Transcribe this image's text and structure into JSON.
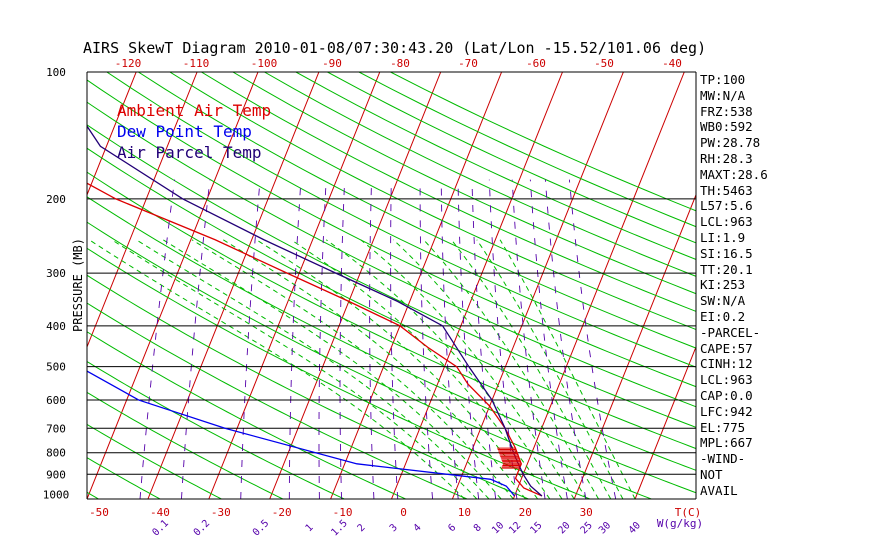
{
  "chart_data": {
    "type": "line",
    "title": "AIRS SkewT Diagram 2010-01-08/07:30:43.20 (Lat/Lon -15.52/101.06 deg)",
    "ylabel": "PRESSURE (MB)",
    "y_scale": "log",
    "ylim": [
      1030,
      100
    ],
    "xlim": [
      -50,
      50
    ],
    "grid": true,
    "legend_placement": "top-left",
    "pressure_ticks": [
      "100",
      "200",
      "300",
      "400",
      "500",
      "600",
      "700",
      "800",
      "900",
      "1000"
    ],
    "isobars": [
      200,
      300,
      400,
      500,
      600,
      700,
      800,
      900
    ],
    "bottom_temp_ticks": [
      "-50",
      "-40",
      "-30",
      "-20",
      "-10",
      "0",
      "10",
      "20",
      "30"
    ],
    "top_temp_ticks": [
      "-120",
      "-110",
      "-100",
      "-90",
      "-80",
      "-70",
      "-60",
      "-50",
      "-40"
    ],
    "mixing_ratio_ticks": [
      "0.1",
      "0.2",
      "0.5",
      "1",
      "1.5",
      "2",
      "3",
      "4",
      "6",
      "8",
      "10",
      "12",
      "15",
      "20",
      "25",
      "30",
      "40"
    ],
    "bottom_axis_unit": "T(C)",
    "mixing_ratio_unit": "W(g/kg)",
    "colors": {
      "ambient": "#dd0000",
      "dewpoint": "#0000ee",
      "parcel": "#220077",
      "isotherm": "#cc0000",
      "adiabat": "#00bb00",
      "mixing": "#5500aa",
      "isobar": "#000000"
    },
    "series": [
      {
        "name": "Ambient Air Temp",
        "x": [
          24.5,
          21,
          19,
          19,
          17,
          14,
          10,
          5,
          2,
          -4,
          -10,
          -20,
          -32,
          -46,
          -65,
          -80,
          -85,
          -85
        ],
        "y": [
          1013,
          970,
          920,
          850,
          780,
          700,
          620,
          550,
          500,
          450,
          400,
          350,
          300,
          250,
          200,
          160,
          150,
          100
        ]
      },
      {
        "name": "Dew Point Temp",
        "x": [
          20,
          18,
          15,
          -8,
          -32,
          -48,
          -60,
          -66,
          -72,
          -78,
          -82,
          -86,
          -92,
          -98,
          -103,
          -106,
          -110
        ],
        "y": [
          1013,
          960,
          925,
          850,
          700,
          600,
          500,
          400,
          350,
          300,
          250,
          200,
          170,
          150,
          130,
          115,
          100
        ]
      },
      {
        "name": "Air Parcel Temp",
        "x": [
          24.5,
          22,
          20,
          18.5,
          17,
          14,
          10,
          4,
          -3,
          -12,
          -24,
          -38,
          -54,
          -71,
          -84
        ],
        "y": [
          1013,
          960,
          900,
          850,
          800,
          700,
          600,
          500,
          400,
          350,
          300,
          250,
          200,
          150,
          100
        ]
      }
    ],
    "wind_hatch": {
      "p_bottom": 870,
      "p_top": 780,
      "left_offset": -3
    }
  },
  "stats": [
    "TP:100",
    "MW:N/A",
    "FRZ:538",
    "WB0:592",
    "PW:28.78",
    "RH:28.3",
    "MAXT:28.6",
    "TH:5463",
    "L57:5.6",
    "LCL:963",
    "LI:1.9",
    "SI:16.5",
    "TT:20.1",
    "KI:253",
    "SW:N/A",
    "EI:0.2",
    "-PARCEL-",
    "CAPE:57",
    "CINH:12",
    "LCL:963",
    "CAP:0.0",
    "LFC:942",
    "EL:775",
    "MPL:667",
    "-WIND-",
    "NOT",
    "AVAIL"
  ]
}
